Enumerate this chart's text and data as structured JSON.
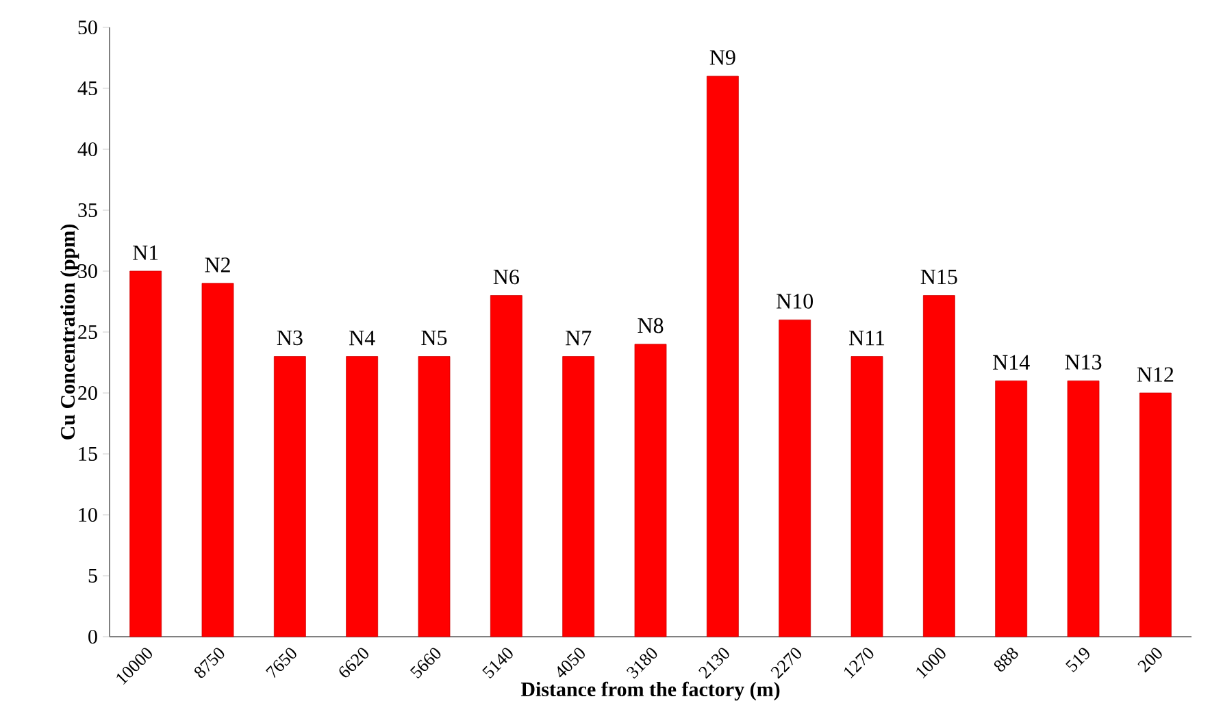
{
  "chart_data": {
    "type": "bar",
    "xlabel": "Distance from the factory (m)",
    "ylabel": "Cu Concentration (ppm)",
    "categories": [
      "10000",
      "8750",
      "7650",
      "6620",
      "5660",
      "5140",
      "4050",
      "3180",
      "2130",
      "2270",
      "1270",
      "1000",
      "888",
      "519",
      "200"
    ],
    "values": [
      30,
      29,
      23,
      23,
      23,
      28,
      23,
      24,
      46,
      26,
      23,
      28,
      21,
      21,
      20
    ],
    "color": "#ff0000",
    "ylim": [
      0,
      50
    ],
    "yticks": [
      0,
      5,
      10,
      15,
      20,
      25,
      30,
      35,
      40,
      45,
      50
    ],
    "grid": false,
    "annotations": [
      {
        "text": "N1",
        "x": "10000",
        "y": 30
      },
      {
        "text": "N2",
        "x": "8750",
        "y": 29
      },
      {
        "text": "N3",
        "x": "7650",
        "y": 23
      },
      {
        "text": "N4",
        "x": "6620",
        "y": 23
      },
      {
        "text": "N5",
        "x": "5660",
        "y": 23
      },
      {
        "text": "N6",
        "x": "5140",
        "y": 28
      },
      {
        "text": "N7",
        "x": "4050",
        "y": 23
      },
      {
        "text": "N8",
        "x": "3180",
        "y": 24
      },
      {
        "text": "N9",
        "x": "2130",
        "y": 46
      },
      {
        "text": "N10",
        "x": "2270",
        "y": 26
      },
      {
        "text": "N11",
        "x": "1270",
        "y": 23
      },
      {
        "text": "N15",
        "x": "1000",
        "y": 28
      },
      {
        "text": "N14",
        "x": "888",
        "y": 21
      },
      {
        "text": "N13",
        "x": "519",
        "y": 21
      },
      {
        "text": "N12",
        "x": "200",
        "y": 20
      }
    ]
  }
}
